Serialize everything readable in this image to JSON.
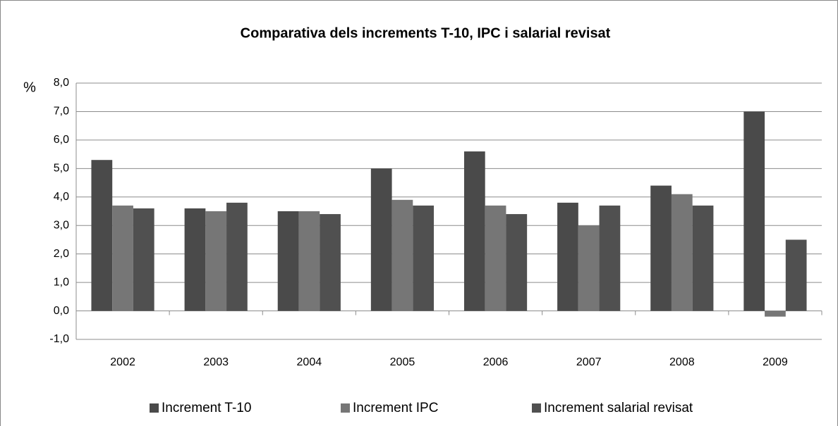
{
  "chart_data": {
    "type": "bar",
    "title": "Comparativa dels increments T-10, IPC i salarial revisat",
    "y_label": "%",
    "categories": [
      "2002",
      "2003",
      "2004",
      "2005",
      "2006",
      "2007",
      "2008",
      "2009"
    ],
    "series": [
      {
        "name": "Increment T-10",
        "color": "#4a4a4a",
        "values": [
          5.3,
          3.6,
          3.5,
          5.0,
          5.6,
          3.8,
          4.4,
          7.0
        ]
      },
      {
        "name": "Increment IPC",
        "color": "#767676",
        "values": [
          3.7,
          3.5,
          3.5,
          3.9,
          3.7,
          3.0,
          4.1,
          -0.2
        ]
      },
      {
        "name": "Increment salarial revisat",
        "color": "#505050",
        "values": [
          3.6,
          3.8,
          3.4,
          3.7,
          3.4,
          3.7,
          3.7,
          2.5
        ]
      }
    ],
    "ylim": [
      -1,
      8
    ],
    "yticks": [
      {
        "value": -1,
        "label": "-1,0"
      },
      {
        "value": 0,
        "label": "0,0"
      },
      {
        "value": 1,
        "label": "1,0"
      },
      {
        "value": 2,
        "label": "2,0"
      },
      {
        "value": 3,
        "label": "3,0"
      },
      {
        "value": 4,
        "label": "4,0"
      },
      {
        "value": 5,
        "label": "5,0"
      },
      {
        "value": 6,
        "label": "6,0"
      },
      {
        "value": 7,
        "label": "7,0"
      },
      {
        "value": 8,
        "label": "8,0"
      }
    ],
    "grid": true,
    "legend": "bottom"
  }
}
